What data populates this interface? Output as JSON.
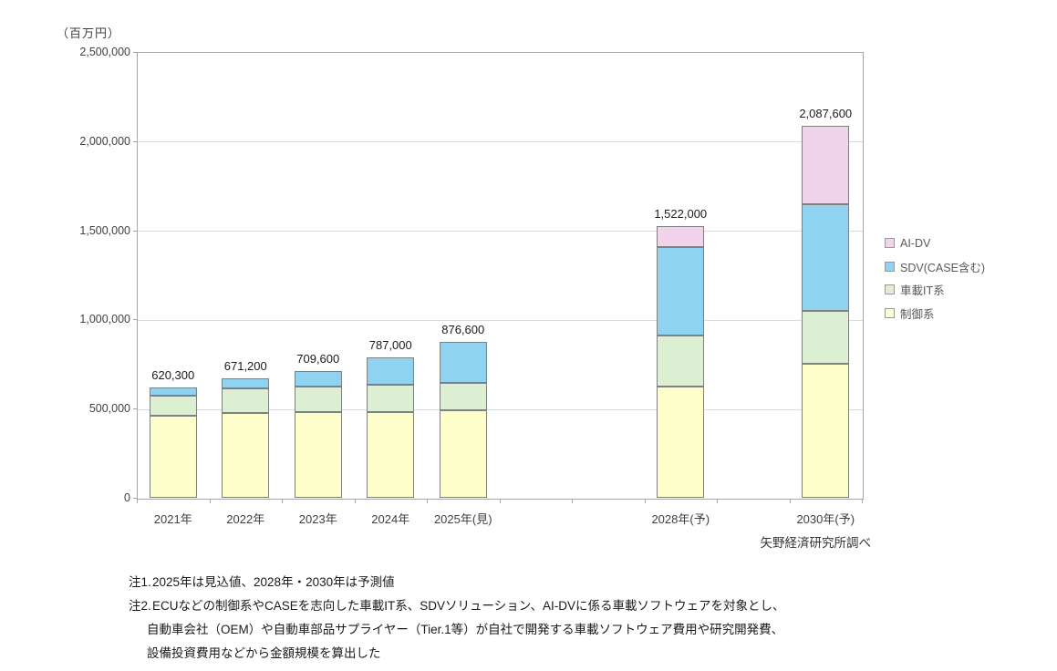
{
  "axis_unit_label": "（百万円）",
  "source_note": "矢野経済研究所調べ",
  "notes": {
    "note1_label": "注1.",
    "note1_text": "2025年は見込値、2028年・2030年は予測値",
    "note2_label": "注2.",
    "note2_line1": "ECUなどの制御系やCASEを志向した車載IT系、SDVソリューション、AI-DVに係る車載ソフトウェアを対象とし、",
    "note2_line2": "自動車会社（OEM）や自動車部品サプライヤー（Tier.1等）が自社で開発する車載ソフトウェア費用や研究開発費、",
    "note2_line3": "設備投資費用などから金額規模を算出した"
  },
  "chart_data": {
    "type": "bar",
    "stacked": true,
    "title": "",
    "unit": "百万円",
    "categories": [
      "2021年",
      "2022年",
      "2023年",
      "2024年",
      "2025年(見)",
      "2028年(予)",
      "2030年(予)"
    ],
    "category_year_slots": [
      0,
      1,
      2,
      3,
      4,
      7,
      9
    ],
    "x_total_slots": 10,
    "totals": [
      620300,
      671200,
      709600,
      787000,
      876600,
      1522000,
      2087600
    ],
    "total_labels": [
      "620,300",
      "671,200",
      "709,600",
      "787,000",
      "876,600",
      "1,522,000",
      "2,087,600"
    ],
    "series": [
      {
        "name": "制御系",
        "color": "#FFFFCB",
        "values": [
          460000,
          475000,
          480000,
          480000,
          490000,
          625000,
          754000
        ]
      },
      {
        "name": "車載IT系",
        "color": "#DCEFD3",
        "values": [
          113000,
          137000,
          146000,
          153000,
          152000,
          283000,
          294000
        ]
      },
      {
        "name": "SDV(CASE含む)",
        "color": "#90D3F1",
        "values": [
          47300,
          59200,
          83600,
          154000,
          234600,
          497000,
          596000
        ]
      },
      {
        "name": "AI-DV",
        "color": "#F1D3EC",
        "values": [
          0,
          0,
          0,
          0,
          0,
          117000,
          443600
        ]
      }
    ],
    "series_values_note": "segment values estimated from bar geometry; totals are exact as labeled",
    "ylim": [
      0,
      2500000
    ],
    "ytick_values": [
      0,
      500000,
      1000000,
      1500000,
      2000000,
      2500000
    ],
    "ytick_labels": [
      "0",
      "500,000",
      "1,000,000",
      "1,500,000",
      "2,000,000",
      "2,500,000"
    ],
    "grid": true,
    "legend_position": "right",
    "legend": [
      {
        "label": "AI-DV",
        "color": "#F1D3EC"
      },
      {
        "label": "SDV(CASE含む)",
        "color": "#90D3F1"
      },
      {
        "label": "車載IT系",
        "color": "#DCEFD3"
      },
      {
        "label": "制御系",
        "color": "#FFFFCB"
      }
    ],
    "colors": {
      "segment_border": "#808080",
      "plot_border": "#A6A6A6",
      "gridline": "#DADADA",
      "axis_text": "#404040",
      "data_label_text": "#1A1A1A",
      "legend_text": "#595959"
    }
  }
}
